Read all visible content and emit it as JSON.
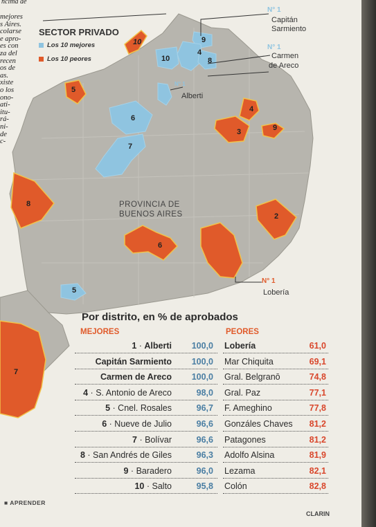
{
  "header_fragment": "ncima de",
  "left_column_fragments": [
    "mejores",
    "s Aires.",
    "colarse",
    "e apro-",
    "es con",
    "za del",
    "recen",
    "os de",
    "as.",
    "xiste",
    "o los",
    "ono-",
    "ati-",
    "itu-",
    "rá-",
    "ni-",
    "de",
    "c-"
  ],
  "sector_title": "SECTOR PRIVADO",
  "legend": [
    {
      "label": "Los 10 mejores",
      "color": "#8fc4e0"
    },
    {
      "label": "Los 10 peores",
      "color": "#e05a2a"
    }
  ],
  "province_label": [
    "PROVINCIA DE",
    "BUENOS AIRES"
  ],
  "place_labels": {
    "capitan_sarmiento_number": "N° 1",
    "capitan_sarmiento": [
      "Capitán",
      "Sarmiento"
    ],
    "carmen_number": "N° 1",
    "carmen_de_areco": [
      "Carmen",
      "de Areco"
    ],
    "alberti_number": "N° 1",
    "alberti": "Alberti",
    "loberia_number": "N° 1",
    "loberia": "Lobería"
  },
  "map_numbers": {
    "best": [
      "10",
      "9",
      "4",
      "8",
      "6",
      "7",
      "5"
    ],
    "worst": [
      "10",
      "5",
      "4",
      "3",
      "9",
      "8",
      "2",
      "6",
      "7"
    ]
  },
  "table": {
    "title": "Por distrito, en % de aprobados",
    "best_header": "MEJORES",
    "worst_header": "PEORES",
    "best": [
      {
        "rank": "1",
        "name": "Alberti",
        "value": "100,0"
      },
      {
        "rank": "",
        "name": "Capitán Sarmiento",
        "value": "100,0"
      },
      {
        "rank": "",
        "name": "Carmen de Areco",
        "value": "100,0"
      },
      {
        "rank": "4",
        "name": "S. Antonio de Areco",
        "value": "98,0"
      },
      {
        "rank": "5",
        "name": "Cnel. Rosales",
        "value": "96,7"
      },
      {
        "rank": "6",
        "name": "Nueve de Julio",
        "value": "96,6"
      },
      {
        "rank": "7",
        "name": "Bolívar",
        "value": "96,6"
      },
      {
        "rank": "8",
        "name": "San Andrés de Giles",
        "value": "96,3"
      },
      {
        "rank": "9",
        "name": "Baradero",
        "value": "96,0"
      },
      {
        "rank": "10",
        "name": "Salto",
        "value": "95,8"
      }
    ],
    "worst": [
      {
        "name": "Lobería",
        "value": "61,0"
      },
      {
        "name": "Mar Chiquita",
        "value": "69,1"
      },
      {
        "name": "Gral. Belgranō",
        "value": "74,8"
      },
      {
        "name": "Gral. Paz",
        "value": "77,1"
      },
      {
        "name": "F. Ameghino",
        "value": "77,8"
      },
      {
        "name": "Gonzáles Chaves",
        "value": "81,2"
      },
      {
        "name": "Patagones",
        "value": "81,2"
      },
      {
        "name": "Adolfo Alsina",
        "value": "81,9"
      },
      {
        "name": "Lezama",
        "value": "82,1"
      },
      {
        "name": "Colón",
        "value": "82,8"
      }
    ]
  },
  "footer": {
    "left": "APRENDER",
    "right": "CLARIN"
  },
  "colors": {
    "best": "#8fc4e0",
    "worst": "#e05a2a",
    "province": "#b7b5ae",
    "paper": "#efede6"
  }
}
